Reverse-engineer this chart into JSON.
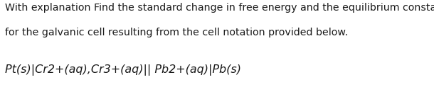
{
  "line1": "With explanation Find the standard change in free energy and the equilibrium constant",
  "line2": "for the galvanic cell resulting from the cell notation provided below.",
  "cell_notation": "Pt(s)|Cr2+(aq),Cr3+(aq)|| Pb2+(aq)|Pb(s)",
  "bg_color": "#ffffff",
  "text_color": "#1a1a1a",
  "font_size_main": 10.2,
  "font_size_cell": 11.5,
  "fig_width": 6.1,
  "fig_height": 1.23,
  "dpi": 100
}
